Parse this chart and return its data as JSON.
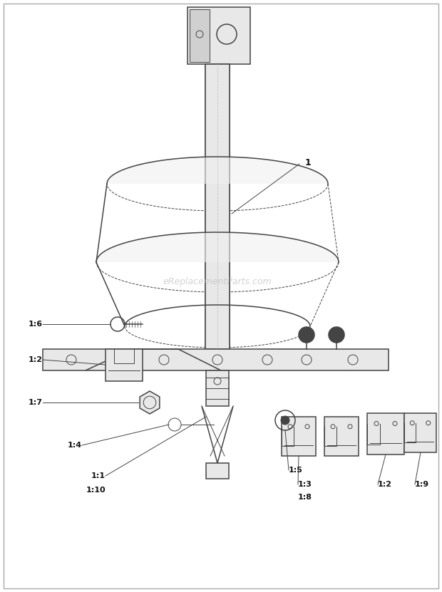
{
  "bg_color": "#ffffff",
  "watermark": "eReplacementParts.com",
  "line_color": "#444444",
  "fill_light": "#e8e8e8",
  "fill_mid": "#d0d0d0"
}
